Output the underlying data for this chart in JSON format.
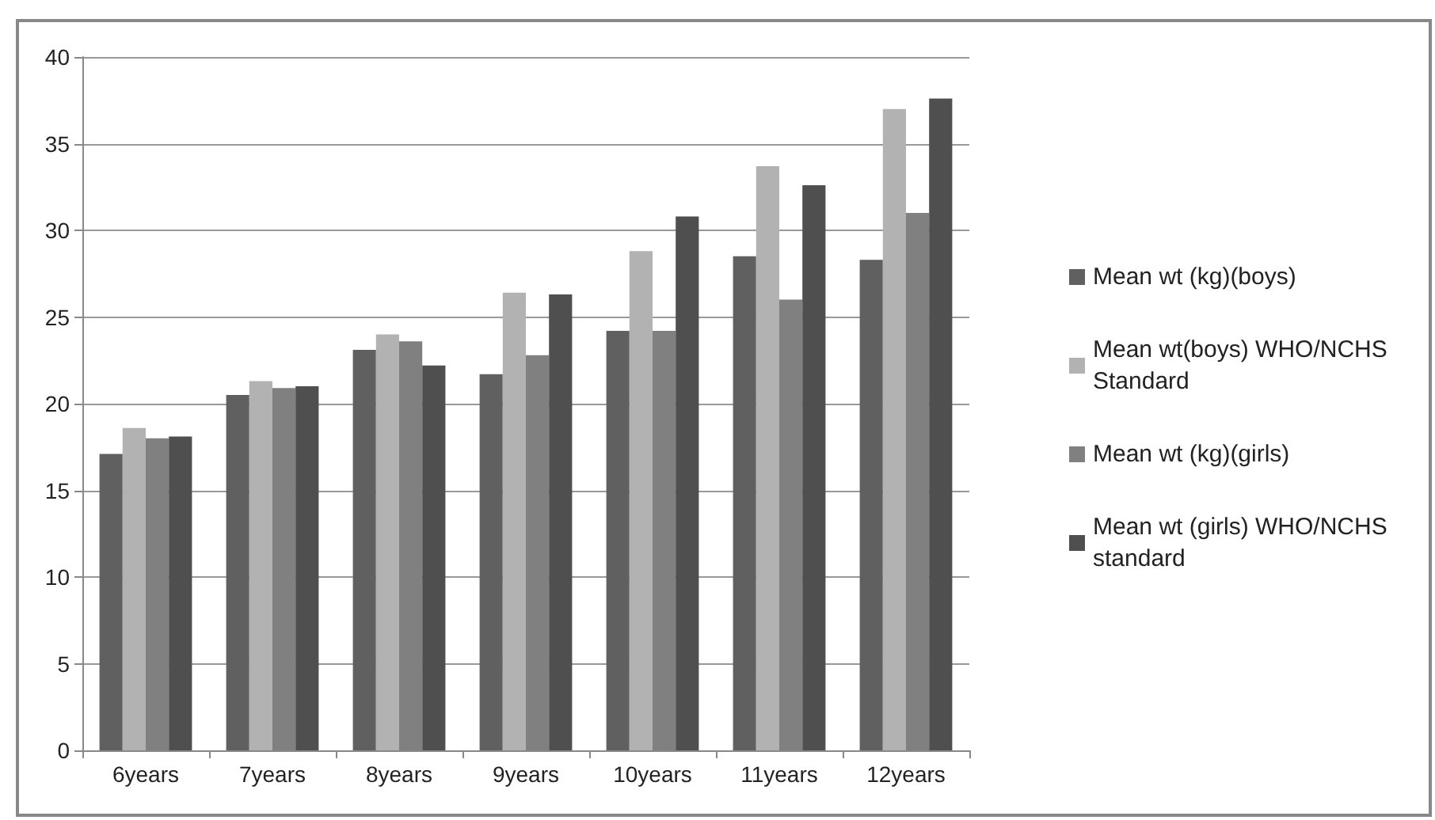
{
  "chart_data": {
    "type": "bar",
    "categories": [
      "6years",
      "7years",
      "8years",
      "9years",
      "10years",
      "11years",
      "12years"
    ],
    "series": [
      {
        "name": "Mean wt (kg)(boys)",
        "color": "#606060",
        "values": [
          17.1,
          20.5,
          23.1,
          21.7,
          24.2,
          28.5,
          28.3
        ]
      },
      {
        "name": "Mean wt(boys) WHO/NCHS Standard",
        "color": "#b2b2b2",
        "values": [
          18.6,
          21.3,
          24.0,
          26.4,
          28.8,
          33.7,
          37.0
        ]
      },
      {
        "name": "Mean wt (kg)(girls)",
        "color": "#808080",
        "values": [
          18.0,
          20.9,
          23.6,
          22.8,
          24.2,
          26.0,
          31.0
        ]
      },
      {
        "name": "Mean wt (girls) WHO/NCHS standard",
        "color": "#4f4f4f",
        "values": [
          18.1,
          21.0,
          22.2,
          26.3,
          30.8,
          32.6,
          37.6
        ]
      }
    ],
    "ylim": [
      0,
      40
    ],
    "yticks": [
      0,
      5,
      10,
      15,
      20,
      25,
      30,
      35,
      40
    ],
    "grid": "y",
    "legend": "right"
  }
}
